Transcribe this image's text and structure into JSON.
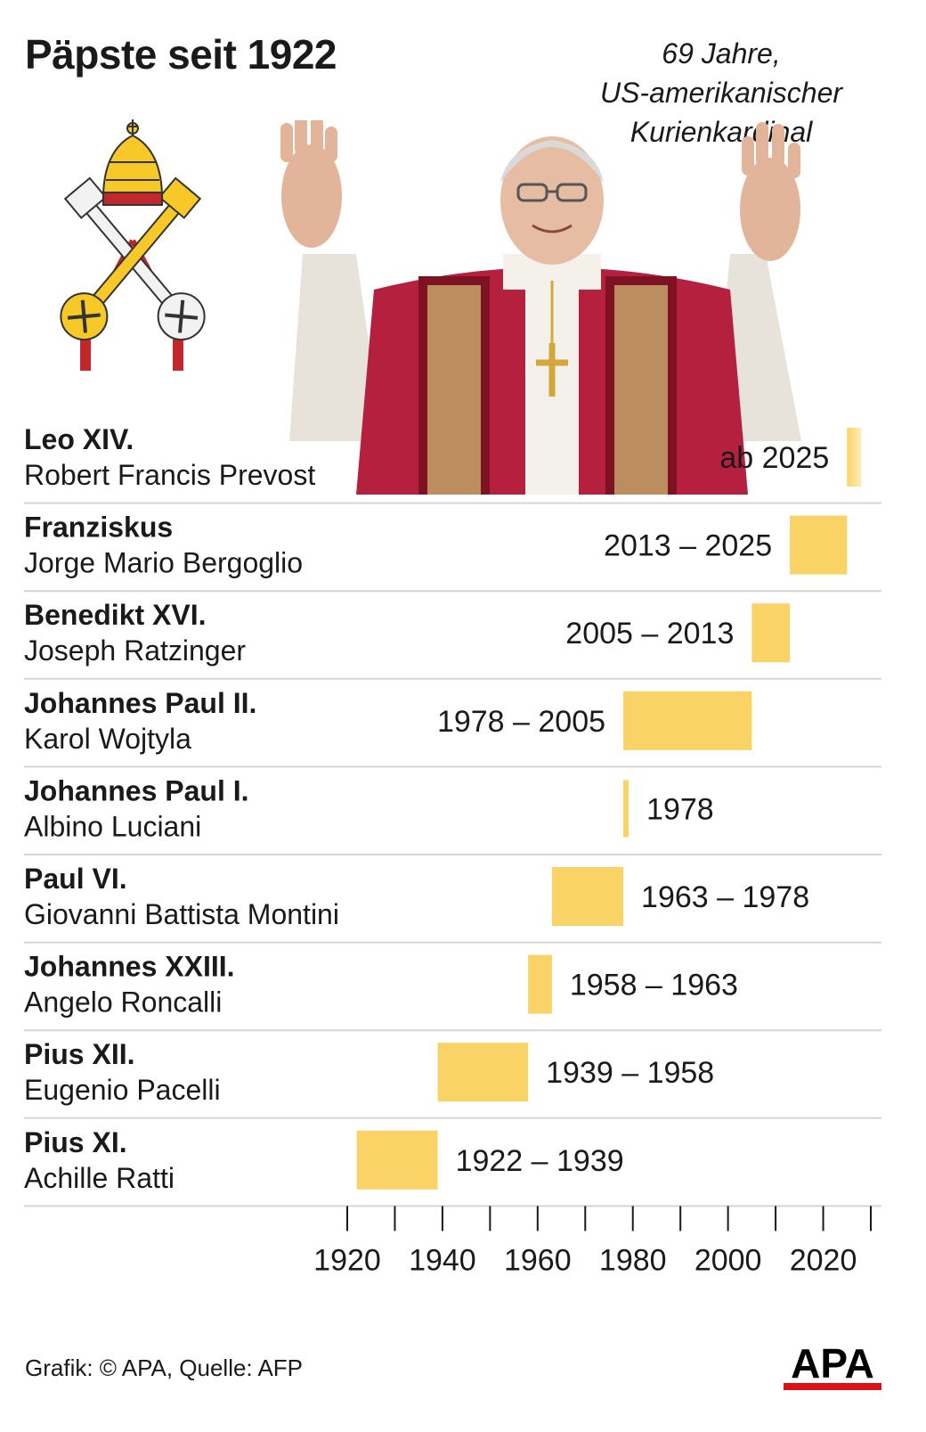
{
  "title": "Päpste seit 1922",
  "caption": [
    "69 Jahre,",
    "US-amerikanischer",
    "Kurienkardinal"
  ],
  "footer": "Grafik: © APA, Quelle: AFP",
  "logo_text": "APA",
  "colors": {
    "bar": "#fad367",
    "bar_fade": "#fdeeb5",
    "separator": "#d5d5d5",
    "logo_red": "#d7141a"
  },
  "chart_data": {
    "type": "bar",
    "orientation": "horizontal-timeline",
    "x": {
      "min": 1920,
      "max": 2030,
      "ticks": [
        1920,
        1940,
        1960,
        1980,
        2000,
        2020
      ]
    },
    "rows": [
      {
        "name": "Leo XIV.",
        "civil": "Robert Francis Prevost",
        "range": "ab 2025",
        "start": 2025,
        "end": 2028,
        "label_side": "left",
        "ongoing": true
      },
      {
        "name": "Franziskus",
        "civil": "Jorge Mario Bergoglio",
        "range": "2013 – 2025",
        "start": 2013,
        "end": 2025,
        "label_side": "left"
      },
      {
        "name": "Benedikt XVI.",
        "civil": "Joseph Ratzinger",
        "range": "2005 – 2013",
        "start": 2005,
        "end": 2013,
        "label_side": "left"
      },
      {
        "name": "Johannes Paul II.",
        "civil": "Karol Wojtyla",
        "range": "1978 – 2005",
        "start": 1978,
        "end": 2005,
        "label_side": "left"
      },
      {
        "name": "Johannes Paul I.",
        "civil": "Albino Luciani",
        "range": "1978",
        "start": 1978,
        "end": 1978.1,
        "label_side": "right"
      },
      {
        "name": "Paul VI.",
        "civil": "Giovanni Battista Montini",
        "range": "1963 – 1978",
        "start": 1963,
        "end": 1978,
        "label_side": "right"
      },
      {
        "name": "Johannes XXIII.",
        "civil": "Angelo Roncalli",
        "range": "1958 – 1963",
        "start": 1958,
        "end": 1963,
        "label_side": "right"
      },
      {
        "name": "Pius XII.",
        "civil": "Eugenio Pacelli",
        "range": "1939 – 1958",
        "start": 1939,
        "end": 1958,
        "label_side": "right"
      },
      {
        "name": "Pius XI.",
        "civil": "Achille Ratti",
        "range": "1922 – 1939",
        "start": 1922,
        "end": 1939,
        "label_side": "right"
      }
    ]
  }
}
